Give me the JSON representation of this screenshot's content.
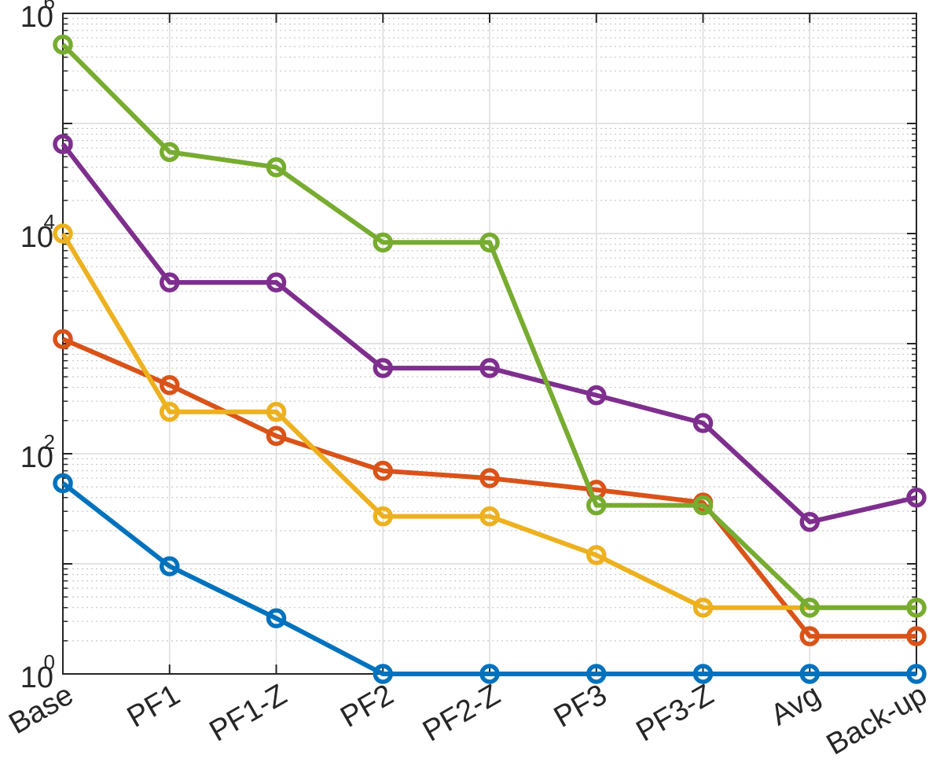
{
  "chart_data": {
    "type": "line",
    "title": "",
    "xlabel": "",
    "ylabel": "",
    "y_scale": "log",
    "ylim": [
      1,
      1000000
    ],
    "grid": "major and minor",
    "legend": "none",
    "marker": "circle",
    "categories": [
      "Base",
      "PF1",
      "PF1-Z",
      "PF2",
      "PF2-Z",
      "PF3",
      "PF3-Z",
      "Avg",
      "Back-up"
    ],
    "y_ticks": [
      {
        "value": 1,
        "base": "10",
        "exp": "0"
      },
      {
        "value": 100,
        "base": "10",
        "exp": "2"
      },
      {
        "value": 10000,
        "base": "10",
        "exp": "4"
      },
      {
        "value": 1000000,
        "base": "10",
        "exp": "6"
      }
    ],
    "series": [
      {
        "color": "#0072BD",
        "values": [
          54,
          9.5,
          3.2,
          1,
          1,
          1,
          1,
          1,
          1
        ]
      },
      {
        "color": "#D95319",
        "values": [
          1100,
          420,
          145,
          70,
          60,
          47,
          36,
          2.2,
          2.2
        ]
      },
      {
        "color": "#EDB120",
        "values": [
          10000,
          240,
          240,
          27,
          27,
          12,
          4,
          null,
          4
        ]
      },
      {
        "color": "#7E2F8E",
        "values": [
          65000,
          3600,
          3600,
          600,
          600,
          340,
          190,
          24,
          40
        ]
      },
      {
        "color": "#77AC30",
        "values": [
          520000,
          55000,
          40000,
          8300,
          8300,
          34,
          34,
          4,
          4
        ]
      }
    ]
  }
}
